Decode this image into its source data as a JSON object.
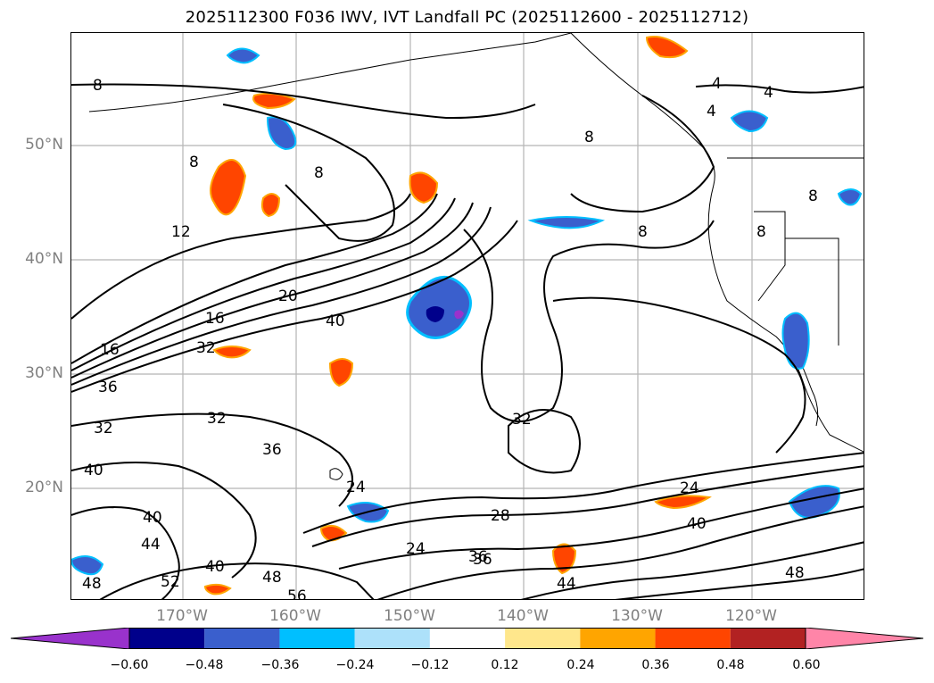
{
  "title": "2025112300 F036 IWV, IVT Landfall PC (2025112600 - 2025112712)",
  "axes": {
    "lat_ticks": [
      "50°N",
      "40°N",
      "30°N",
      "20°N"
    ],
    "lon_ticks": [
      "170°W",
      "160°W",
      "150°W",
      "140°W",
      "130°W",
      "120°W"
    ]
  },
  "contour_labels": [
    "8",
    "8",
    "8",
    "8",
    "8",
    "8",
    "8",
    "4",
    "4",
    "4",
    "12",
    "16",
    "16",
    "20",
    "32",
    "32",
    "32",
    "32",
    "36",
    "36",
    "36",
    "40",
    "40",
    "40",
    "40",
    "44",
    "44",
    "48",
    "48",
    "48",
    "52",
    "56",
    "24",
    "24",
    "24",
    "28",
    "36",
    "40"
  ],
  "colorbar": {
    "ticks": [
      "−0.60",
      "−0.48",
      "−0.36",
      "−0.24",
      "−0.12",
      "0.12",
      "0.24",
      "0.36",
      "0.48",
      "0.60"
    ],
    "colors": [
      "#9932CC",
      "#00008B",
      "#3a5fcd",
      "#00BFFF",
      "#ADE1FA",
      "#FFFFFF",
      "#FFE78C",
      "#FFA500",
      "#FF4500",
      "#B22222",
      "#FF85A8"
    ]
  }
}
